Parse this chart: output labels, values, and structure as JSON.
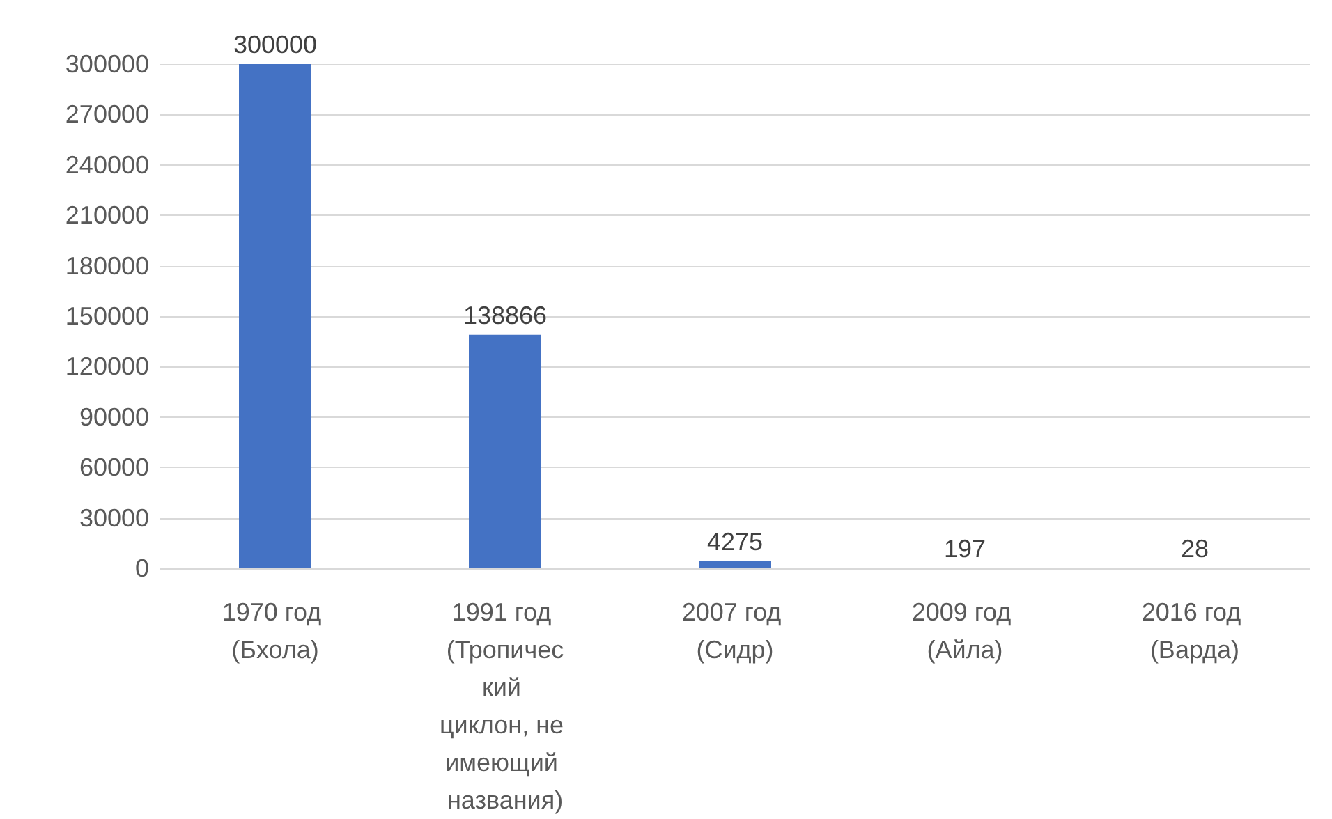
{
  "chart_data": {
    "type": "bar",
    "categories": [
      "1970 год (Бхола)",
      "1991 год (Тропический циклон, не имеющий названия)",
      "2007 год (Сидр)",
      "2009 год (Айла)",
      "2016 год (Варда)"
    ],
    "values": [
      300000,
      138866,
      4275,
      197,
      28
    ],
    "color": "#4472c4",
    "ylim": [
      0,
      300000
    ],
    "yticks": [
      0,
      30000,
      60000,
      90000,
      120000,
      150000,
      180000,
      210000,
      240000,
      270000,
      300000
    ],
    "grid": "y",
    "data_labels": true
  }
}
